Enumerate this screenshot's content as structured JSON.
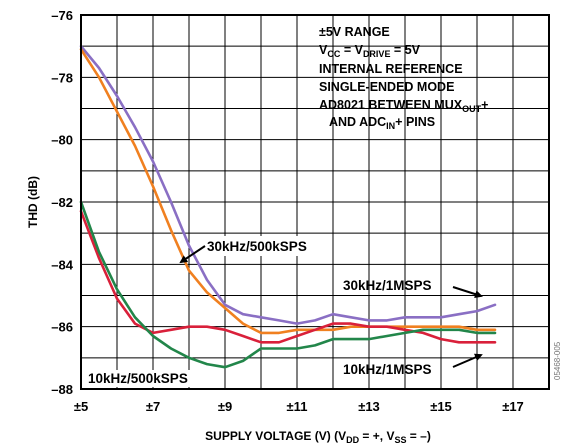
{
  "chart_data": {
    "type": "line",
    "xlabel": "SUPPLY VOLTAGE (V) (V_DD = +, V_SS = –)",
    "ylabel": "THD (dB)",
    "xlim": [
      5,
      18
    ],
    "ylim": [
      -88,
      -76
    ],
    "x_ticks": [
      "±5",
      "±7",
      "±9",
      "±11",
      "±13",
      "±15",
      "±17"
    ],
    "y_ticks": [
      "–76",
      "–78",
      "–80",
      "–82",
      "–84",
      "–86",
      "–88"
    ],
    "grid": true,
    "notes": [
      "±5V RANGE",
      "V_CC = V_DRIVE = 5V",
      "INTERNAL REFERENCE",
      "SINGLE-ENDED MODE",
      "AD8021 BETWEEN MUX_OUT+",
      "AND ADC_IN+ PINS"
    ],
    "annotations": [
      "30kHz/500kSPS",
      "30kHz/1MSPS",
      "10kHz/1MSPS",
      "10kHz/500kSPS"
    ],
    "figure_id": "05468-005",
    "series": [
      {
        "name": "30kHz/1MSPS",
        "color": "#8a6fc4",
        "x": [
          5,
          5.5,
          6,
          6.5,
          7,
          7.5,
          8,
          8.5,
          9,
          9.5,
          10,
          10.5,
          11,
          11.5,
          12,
          12.5,
          13,
          13.5,
          14,
          14.5,
          15,
          15.5,
          16,
          16.5
        ],
        "y": [
          -77.0,
          -77.7,
          -78.6,
          -79.6,
          -80.7,
          -82.0,
          -83.4,
          -84.5,
          -85.3,
          -85.6,
          -85.7,
          -85.8,
          -85.9,
          -85.8,
          -85.6,
          -85.7,
          -85.8,
          -85.8,
          -85.7,
          -85.7,
          -85.7,
          -85.6,
          -85.5,
          -85.3
        ]
      },
      {
        "name": "30kHz/500kSPS",
        "color": "#f08020",
        "x": [
          5,
          5.5,
          6,
          6.5,
          7,
          7.5,
          8,
          8.5,
          9,
          9.5,
          10,
          10.5,
          11,
          11.5,
          12,
          12.5,
          13,
          13.5,
          14,
          14.5,
          15,
          15.5,
          16,
          16.5
        ],
        "y": [
          -77.1,
          -78.0,
          -79.1,
          -80.2,
          -81.5,
          -82.9,
          -84.2,
          -84.9,
          -85.4,
          -85.9,
          -86.2,
          -86.2,
          -86.1,
          -86.1,
          -86.1,
          -86.0,
          -86.0,
          -86.0,
          -86.0,
          -86.0,
          -86.0,
          -86.0,
          -86.1,
          -86.1
        ]
      },
      {
        "name": "10kHz/1MSPS",
        "color": "#d9203a",
        "x": [
          5,
          5.5,
          6,
          6.5,
          7,
          7.5,
          8,
          8.5,
          9,
          9.5,
          10,
          10.5,
          11,
          11.5,
          12,
          12.5,
          13,
          13.5,
          14,
          14.5,
          15,
          15.5,
          16,
          16.5
        ],
        "y": [
          -82.3,
          -83.8,
          -85.1,
          -85.9,
          -86.2,
          -86.1,
          -86.0,
          -86.0,
          -86.1,
          -86.3,
          -86.5,
          -86.5,
          -86.3,
          -86.1,
          -85.9,
          -85.9,
          -86.0,
          -86.0,
          -86.1,
          -86.2,
          -86.4,
          -86.5,
          -86.5,
          -86.5
        ]
      },
      {
        "name": "10kHz/500kSPS",
        "color": "#22864a",
        "x": [
          5,
          5.5,
          6,
          6.5,
          7,
          7.5,
          8,
          8.5,
          9,
          9.5,
          10,
          10.5,
          11,
          11.5,
          12,
          12.5,
          13,
          13.5,
          14,
          14.5,
          15,
          15.5,
          16,
          16.5
        ],
        "y": [
          -82.0,
          -83.6,
          -84.8,
          -85.7,
          -86.3,
          -86.7,
          -87.0,
          -87.2,
          -87.3,
          -87.1,
          -86.7,
          -86.7,
          -86.7,
          -86.6,
          -86.4,
          -86.4,
          -86.4,
          -86.3,
          -86.2,
          -86.1,
          -86.1,
          -86.1,
          -86.2,
          -86.2
        ]
      }
    ]
  }
}
